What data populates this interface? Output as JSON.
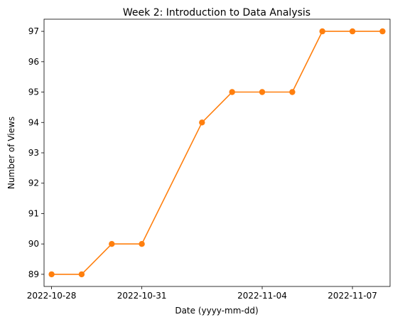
{
  "chart_data": {
    "type": "line",
    "title": "Week 2: Introduction to Data Analysis",
    "xlabel": "Date (yyyy-mm-dd)",
    "ylabel": "Number of Views",
    "x": [
      "2022-10-28",
      "2022-10-29",
      "2022-10-30",
      "2022-10-31",
      "2022-11-01",
      "2022-11-02",
      "2022-11-03",
      "2022-11-04",
      "2022-11-05",
      "2022-11-06",
      "2022-11-07",
      "2022-11-08"
    ],
    "series": [
      {
        "name": "",
        "values": [
          89,
          89,
          90,
          90,
          null,
          94,
          95,
          95,
          95,
          97,
          97,
          97
        ],
        "color": "#ff7f0e"
      }
    ],
    "x_ticks": [
      "2022-10-28",
      "2022-10-31",
      "2022-11-04",
      "2022-11-07"
    ],
    "y_ticks": [
      89,
      90,
      91,
      92,
      93,
      94,
      95,
      96,
      97
    ],
    "xlim": [
      "2022-10-27T18:00",
      "2022-11-08T06:00"
    ],
    "ylim": [
      88.6,
      97.4
    ],
    "grid": false,
    "legend": "none"
  }
}
